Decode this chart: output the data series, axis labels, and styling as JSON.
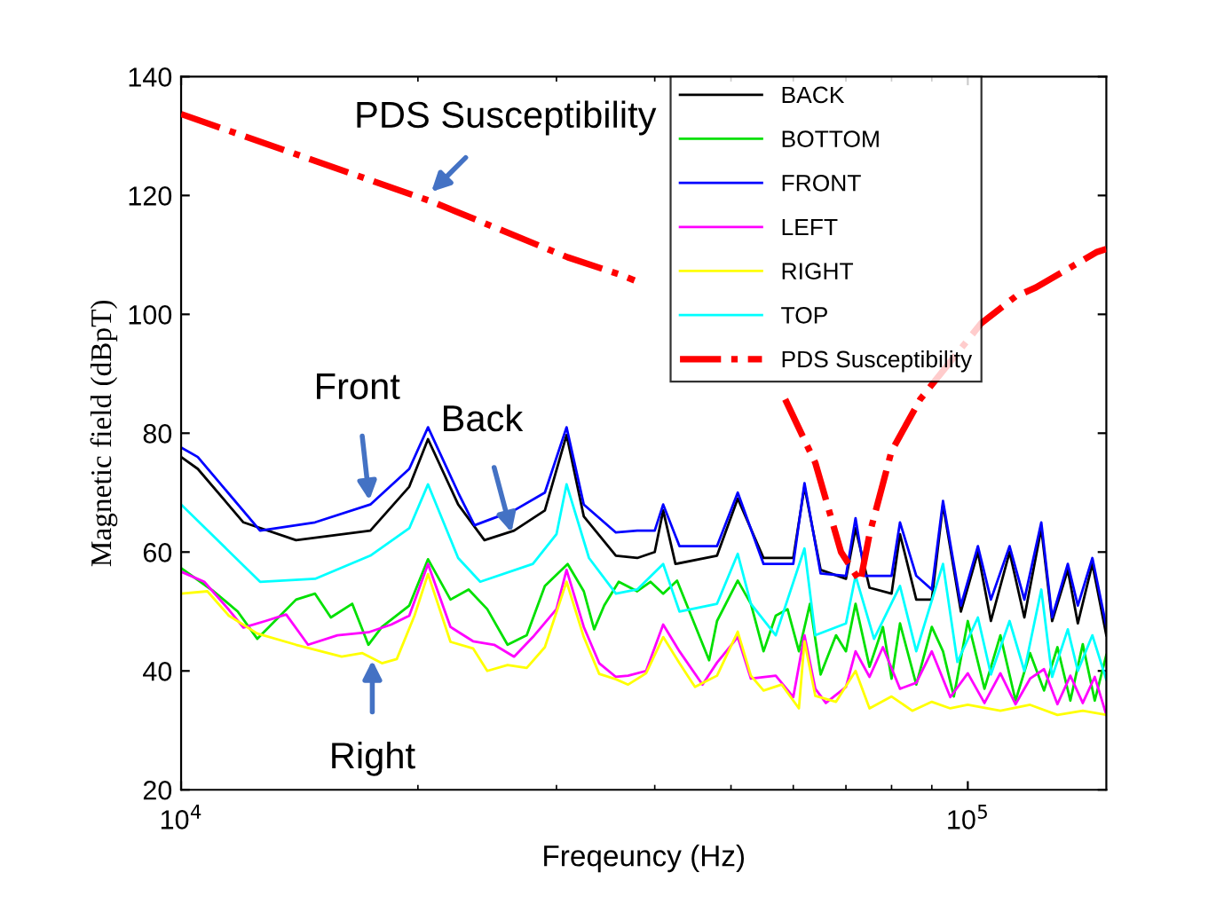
{
  "chart_data": {
    "type": "line",
    "xlabel": "Freqeuncy (Hz)",
    "ylabel": "Magnetic field (dBpT)",
    "log": "x",
    "xlim": [
      10000,
      150000
    ],
    "xticks": [
      {
        "value": 10000,
        "label": "10$^{4}$"
      },
      {
        "value": 100000,
        "label": "10$^{5}$"
      }
    ],
    "ylim": [
      20,
      140
    ],
    "yticks": [
      20,
      40,
      60,
      80,
      100,
      120,
      140
    ],
    "grid": false,
    "legend": "top right",
    "marker": "none",
    "series": [
      {
        "name": "BACK",
        "color": "#000000",
        "line_style": "solid",
        "x": [
          10000,
          10500,
          12000,
          14000,
          17400,
          19500,
          20600,
          22500,
          24300,
          26500,
          29000,
          30900,
          32500,
          35700,
          38000,
          40000,
          41000,
          42500,
          48000,
          51000,
          55000,
          60000,
          62000,
          65000,
          70000,
          72000,
          75000,
          80000,
          82000,
          86000,
          90000,
          93000,
          98000,
          103000,
          107000,
          113000,
          118000,
          124000,
          128000,
          134000,
          138000,
          144000,
          150000
        ],
        "values": [
          76,
          74,
          65,
          62,
          63.6,
          71,
          79,
          68,
          62,
          63.6,
          67,
          79.7,
          66,
          59.4,
          59,
          60,
          67,
          58,
          59.4,
          69,
          59,
          59,
          71,
          57,
          55.5,
          64,
          54,
          53,
          63,
          52,
          52,
          68,
          50,
          60,
          48.4,
          60,
          49,
          64,
          48.4,
          57,
          48,
          58,
          46
        ]
      },
      {
        "name": "BOTTOM",
        "color": "#00e000",
        "line_style": "solid",
        "x": [
          10000,
          11000,
          11800,
          12500,
          14000,
          14800,
          15500,
          16500,
          17300,
          18000,
          19500,
          20600,
          22000,
          23200,
          24500,
          26000,
          27500,
          29000,
          31000,
          32500,
          33500,
          34500,
          36000,
          38000,
          39500,
          41000,
          42700,
          46900,
          48000,
          51000,
          53000,
          55000,
          57000,
          59000,
          61000,
          63000,
          65000,
          68000,
          70000,
          72000,
          75000,
          78000,
          80000,
          82000,
          86000,
          90000,
          93000,
          96000,
          100000,
          105000,
          110000,
          115000,
          120000,
          125000,
          130000,
          135000,
          140000,
          145000,
          150000
        ],
        "values": [
          57.3,
          53.4,
          50,
          45.4,
          52,
          53,
          49,
          51.3,
          44.4,
          47.4,
          51,
          58.8,
          52,
          53.7,
          50.4,
          44.4,
          46,
          54.3,
          58,
          53.4,
          47,
          51,
          55,
          53.4,
          55,
          53,
          55.2,
          41.8,
          48.4,
          55.2,
          51.3,
          43.3,
          49.3,
          50.4,
          43.3,
          51.3,
          39.4,
          46,
          43.3,
          51.3,
          40.7,
          47.4,
          38.7,
          48,
          37.7,
          47.4,
          43.3,
          35.7,
          48.4,
          37,
          46,
          35,
          43,
          36.7,
          44,
          35,
          44.5,
          35,
          42.7
        ]
      },
      {
        "name": "FRONT",
        "color": "#0000ff",
        "line_style": "solid",
        "x": [
          10000,
          10500,
          12600,
          14800,
          17400,
          19500,
          20600,
          22500,
          23600,
          26500,
          29000,
          30900,
          32500,
          35700,
          38000,
          40000,
          41000,
          43000,
          48000,
          51000,
          55000,
          60000,
          62000,
          65000,
          70000,
          72000,
          74000,
          80000,
          82000,
          86000,
          90000,
          93000,
          98000,
          103000,
          107000,
          113000,
          118000,
          124000,
          128000,
          134000,
          138000,
          144000,
          150000
        ],
        "values": [
          77.6,
          76,
          63.6,
          65,
          68,
          74,
          81,
          70,
          64.5,
          67,
          70,
          81,
          68,
          63.3,
          63.6,
          63.6,
          68,
          61,
          61,
          70,
          58,
          58,
          71.6,
          56.4,
          56,
          65.7,
          56,
          56,
          65,
          56,
          53.7,
          68.6,
          51,
          61,
          52,
          61,
          52,
          65,
          49,
          58,
          51,
          59,
          47.5
        ]
      },
      {
        "name": "LEFT",
        "color": "#ff00ff",
        "line_style": "solid",
        "x": [
          10000,
          10700,
          11500,
          12000,
          12800,
          13600,
          14500,
          15800,
          17300,
          18500,
          19500,
          20600,
          22000,
          23500,
          25000,
          26500,
          28000,
          30000,
          30900,
          32500,
          34000,
          35700,
          37000,
          39000,
          41000,
          43000,
          46000,
          48000,
          51000,
          53000,
          57000,
          60000,
          62000,
          64000,
          66000,
          70000,
          72000,
          75000,
          78000,
          82000,
          86000,
          90000,
          95000,
          100000,
          105000,
          110000,
          115000,
          120000,
          125000,
          130000,
          135000,
          140000,
          145000,
          150000
        ],
        "values": [
          56.7,
          55,
          50.3,
          47.3,
          48.4,
          49.5,
          44.4,
          46,
          46.5,
          47.8,
          49.3,
          58,
          47.4,
          45,
          44.4,
          42.4,
          45.7,
          50.4,
          57,
          47.4,
          41.3,
          39,
          39.2,
          40,
          47.8,
          43.3,
          37.7,
          41.4,
          45.7,
          38.7,
          39.2,
          35.6,
          46,
          37,
          34.6,
          37.3,
          43.3,
          39,
          44,
          37,
          38,
          43.3,
          35.6,
          39.6,
          34.6,
          39.6,
          34.4,
          38.7,
          40.3,
          34.4,
          39.2,
          34.6,
          39,
          32.6
        ]
      },
      {
        "name": "RIGHT",
        "color": "#ffff00",
        "line_style": "solid",
        "x": [
          10000,
          10800,
          11500,
          12500,
          14000,
          16000,
          17000,
          18000,
          18800,
          19800,
          20600,
          22000,
          23500,
          24500,
          26000,
          27500,
          29000,
          30900,
          32500,
          34000,
          35700,
          37000,
          39000,
          41000,
          43000,
          45000,
          48000,
          51000,
          53000,
          55000,
          58000,
          61000,
          62000,
          64000,
          68000,
          72000,
          75000,
          80000,
          85000,
          90000,
          95000,
          100000,
          110000,
          120000,
          130000,
          140000,
          150000
        ],
        "values": [
          53,
          53.4,
          49.3,
          46.3,
          44.4,
          42.4,
          43,
          41.3,
          42,
          49.3,
          56.3,
          44.9,
          43.8,
          40,
          41,
          40.5,
          44,
          55,
          45.7,
          39.5,
          38.6,
          37.7,
          39.6,
          45.7,
          41.3,
          37.3,
          39.2,
          46.6,
          39.2,
          36.7,
          37.7,
          33.7,
          45,
          35.8,
          34.8,
          40,
          33.7,
          35.7,
          33.3,
          34.8,
          33.7,
          34.3,
          33.3,
          34.3,
          32.6,
          33.3,
          32.6
        ]
      },
      {
        "name": "TOP",
        "color": "#00ffff",
        "line_style": "solid",
        "x": [
          10000,
          12600,
          14800,
          17400,
          19500,
          20600,
          22500,
          24000,
          28000,
          30000,
          30900,
          33000,
          35700,
          38000,
          41000,
          43000,
          48000,
          51000,
          53000,
          57000,
          62000,
          64000,
          70000,
          72000,
          76000,
          82000,
          86000,
          93000,
          97000,
          103000,
          107000,
          113000,
          118000,
          124000,
          128000,
          134000,
          138000,
          144000,
          150000
        ],
        "values": [
          68,
          55,
          55.5,
          59.4,
          64,
          71.4,
          59,
          55,
          58,
          63,
          71.4,
          59,
          53,
          53.7,
          58,
          50,
          51.3,
          59.7,
          51.3,
          46,
          60.6,
          46,
          48,
          56,
          45.4,
          54.3,
          43.3,
          58,
          41.5,
          49,
          39.4,
          48.4,
          40,
          53.7,
          39,
          47,
          40,
          46,
          38.5
        ]
      },
      {
        "name": "PDS Susceptibility",
        "color": "#ff0000",
        "line_style": "dashdot",
        "x": [
          10000,
          20800,
          31000,
          36300,
          37700,
          47000,
          58600,
          64000,
          69000,
          73000,
          75000,
          80000,
          87000,
          104000,
          115000,
          122000,
          146000,
          150000
        ],
        "values": [
          133.7,
          119,
          109.6,
          106.6,
          105.7,
          null,
          85.7,
          75,
          60,
          55,
          63,
          77,
          85.7,
          98.5,
          103,
          104.5,
          110.5,
          111
        ]
      }
    ],
    "annotations": [
      {
        "text": "PDS Susceptibility",
        "x": 20800,
        "y": 120.6
      },
      {
        "text": "Front",
        "x": 17350,
        "y": 68.7
      },
      {
        "text": "Back",
        "x": 26300,
        "y": 63.3
      },
      {
        "text": "Right",
        "x": 17500,
        "y": 41.8
      }
    ]
  }
}
